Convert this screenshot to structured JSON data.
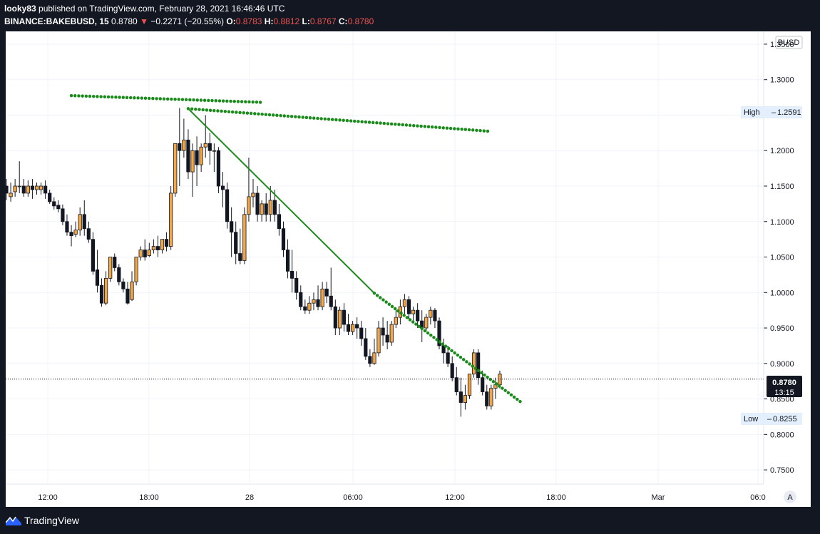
{
  "header": {
    "author": "looky83",
    "published_text": "published on TradingView.com, February 28, 2021 16:46:46 UTC",
    "symbol": "BINANCE:BAKEBUSD, 15",
    "last": "0.8780",
    "change": "−0.2271 (−20.55%)",
    "open_label": "O:",
    "open": "0.8783",
    "high_label": "H:",
    "high": "0.8812",
    "low_label": "L:",
    "low": "0.8767",
    "close_label": "C:",
    "close": "0.8780"
  },
  "footer": {
    "brand": "TradingView"
  },
  "chart_data": {
    "type": "candlestick",
    "currency": "BUSD",
    "ylim": [
      0.73,
      1.362
    ],
    "y_ticks": [
      "1.3500",
      "1.3000",
      "1.2500",
      "1.2000",
      "1.1500",
      "1.1000",
      "1.0500",
      "1.0000",
      "0.9500",
      "0.9000",
      "0.8500",
      "0.8000",
      "0.7500"
    ],
    "x_ticks": [
      "12:00",
      "18:00",
      "28",
      "06:00",
      "12:00",
      "18:00",
      "Mar",
      "06:0"
    ],
    "last_price": "0.8780",
    "countdown": "13:15",
    "high_label": "High",
    "high_value": "1.2591",
    "low_label": "Low",
    "low_value": "0.8255",
    "auto_label": "A",
    "colors": {
      "up": "#f6a640",
      "down": "#131722",
      "trend": "#1a8b1a",
      "dots": "#1a8b1a",
      "price_line": "#131722"
    },
    "candles": [
      [
        1.15,
        1.16,
        1.14,
        1.13
      ],
      [
        1.135,
        1.155,
        1.14,
        1.128
      ],
      [
        1.142,
        1.16,
        1.15,
        1.135
      ],
      [
        1.15,
        1.185,
        1.15,
        1.14
      ],
      [
        1.15,
        1.16,
        1.14,
        1.135
      ],
      [
        1.14,
        1.158,
        1.15,
        1.135
      ],
      [
        1.15,
        1.16,
        1.145,
        1.132
      ],
      [
        1.145,
        1.155,
        1.15,
        1.138
      ],
      [
        1.145,
        1.155,
        1.15,
        1.138
      ],
      [
        1.15,
        1.158,
        1.14,
        1.132
      ],
      [
        1.14,
        1.145,
        1.128,
        1.125
      ],
      [
        1.128,
        1.134,
        1.122,
        1.117
      ],
      [
        1.123,
        1.13,
        1.118,
        1.113
      ],
      [
        1.118,
        1.124,
        1.1,
        1.095
      ],
      [
        1.1,
        1.11,
        1.085,
        1.08
      ],
      [
        1.085,
        1.095,
        1.08,
        1.065
      ],
      [
        1.082,
        1.1,
        1.088,
        1.078
      ],
      [
        1.088,
        1.12,
        1.11,
        1.08
      ],
      [
        1.11,
        1.13,
        1.09,
        1.08
      ],
      [
        1.09,
        1.1,
        1.075,
        1.07
      ],
      [
        1.075,
        1.085,
        1.03,
        1.025
      ],
      [
        1.032,
        1.06,
        1.01,
        1.0
      ],
      [
        1.01,
        1.02,
        0.985,
        0.98
      ],
      [
        0.985,
        1.03,
        1.02,
        0.982
      ],
      [
        1.02,
        1.045,
        1.05,
        1.015
      ],
      [
        1.05,
        1.055,
        1.035,
        1.03
      ],
      [
        1.035,
        1.04,
        1.015,
        1.01
      ],
      [
        1.015,
        1.02,
        1.005,
        1.0
      ],
      [
        1.005,
        1.015,
        0.985,
        0.983
      ],
      [
        0.99,
        1.03,
        1.015,
        0.988
      ],
      [
        1.015,
        1.045,
        1.05,
        1.01
      ],
      [
        1.05,
        1.065,
        1.06,
        1.045
      ],
      [
        1.06,
        1.075,
        1.05,
        1.045
      ],
      [
        1.052,
        1.07,
        1.06,
        1.05
      ],
      [
        1.06,
        1.075,
        1.065,
        1.055
      ],
      [
        1.065,
        1.08,
        1.06,
        1.05
      ],
      [
        1.06,
        1.07,
        1.075,
        1.055
      ],
      [
        1.075,
        1.085,
        1.065,
        1.058
      ],
      [
        1.065,
        1.15,
        1.14,
        1.06
      ],
      [
        1.14,
        1.2,
        1.21,
        1.135
      ],
      [
        1.21,
        1.26,
        1.2,
        1.15
      ],
      [
        1.2,
        1.245,
        1.215,
        1.19
      ],
      [
        1.215,
        1.23,
        1.17,
        1.16
      ],
      [
        1.17,
        1.21,
        1.2,
        1.135
      ],
      [
        1.2,
        1.22,
        1.18,
        1.15
      ],
      [
        1.18,
        1.21,
        1.205,
        1.17
      ],
      [
        1.205,
        1.25,
        1.21,
        1.19
      ],
      [
        1.21,
        1.225,
        1.2,
        1.18
      ],
      [
        1.2,
        1.21,
        1.2,
        1.17
      ],
      [
        1.2,
        1.205,
        1.15,
        1.14
      ],
      [
        1.15,
        1.17,
        1.145,
        1.12
      ],
      [
        1.145,
        1.155,
        1.1,
        1.09
      ],
      [
        1.1,
        1.12,
        1.085,
        1.05
      ],
      [
        1.085,
        1.1,
        1.055,
        1.04
      ],
      [
        1.055,
        1.09,
        1.045,
        1.04
      ],
      [
        1.045,
        1.12,
        1.11,
        1.04
      ],
      [
        1.11,
        1.19,
        1.135,
        1.1
      ],
      [
        1.135,
        1.16,
        1.14,
        1.12
      ],
      [
        1.14,
        1.15,
        1.11,
        1.1
      ],
      [
        1.11,
        1.13,
        1.125,
        1.1
      ],
      [
        1.125,
        1.14,
        1.11,
        1.1
      ],
      [
        1.11,
        1.15,
        1.13,
        1.1
      ],
      [
        1.13,
        1.145,
        1.11,
        1.1
      ],
      [
        1.11,
        1.125,
        1.09,
        1.08
      ],
      [
        1.09,
        1.1,
        1.06,
        1.05
      ],
      [
        1.06,
        1.075,
        1.03,
        1.02
      ],
      [
        1.03,
        1.06,
        1.02,
        1.0
      ],
      [
        1.02,
        1.03,
        1.0,
        0.99
      ],
      [
        1.0,
        1.01,
        0.98,
        0.975
      ],
      [
        0.98,
        0.99,
        0.975,
        0.97
      ],
      [
        0.975,
        0.995,
        0.985,
        0.97
      ],
      [
        0.985,
        1.0,
        0.99,
        0.975
      ],
      [
        0.99,
        1.01,
        0.98,
        0.975
      ],
      [
        0.98,
        1.015,
        1.005,
        0.975
      ],
      [
        1.005,
        1.015,
        0.995,
        0.985
      ],
      [
        0.995,
        1.035,
        0.98,
        0.975
      ],
      [
        0.98,
        0.99,
        0.95,
        0.94
      ],
      [
        0.95,
        0.98,
        0.975,
        0.94
      ],
      [
        0.975,
        0.985,
        0.955,
        0.945
      ],
      [
        0.955,
        0.97,
        0.945,
        0.94
      ],
      [
        0.945,
        0.96,
        0.955,
        0.94
      ],
      [
        0.955,
        0.965,
        0.95,
        0.935
      ],
      [
        0.95,
        0.96,
        0.935,
        0.925
      ],
      [
        0.935,
        0.95,
        0.91,
        0.905
      ],
      [
        0.91,
        0.92,
        0.9,
        0.895
      ],
      [
        0.9,
        0.935,
        0.915,
        0.898
      ],
      [
        0.915,
        0.96,
        0.95,
        0.91
      ],
      [
        0.95,
        0.965,
        0.94,
        0.925
      ],
      [
        0.94,
        0.96,
        0.93,
        0.92
      ],
      [
        0.93,
        0.96,
        0.955,
        0.925
      ],
      [
        0.955,
        0.975,
        0.965,
        0.95
      ],
      [
        0.965,
        0.99,
        0.98,
        0.955
      ],
      [
        0.98,
        0.998,
        0.99,
        0.97
      ],
      [
        0.99,
        0.995,
        0.97,
        0.96
      ],
      [
        0.97,
        0.98,
        0.975,
        0.96
      ],
      [
        0.975,
        0.985,
        0.96,
        0.95
      ],
      [
        0.96,
        0.975,
        0.95,
        0.93
      ],
      [
        0.95,
        0.97,
        0.965,
        0.945
      ],
      [
        0.965,
        0.98,
        0.975,
        0.955
      ],
      [
        0.975,
        0.978,
        0.96,
        0.95
      ],
      [
        0.96,
        0.965,
        0.925,
        0.92
      ],
      [
        0.925,
        0.935,
        0.915,
        0.9
      ],
      [
        0.915,
        0.925,
        0.9,
        0.895
      ],
      [
        0.9,
        0.91,
        0.88,
        0.875
      ],
      [
        0.88,
        0.895,
        0.86,
        0.855
      ],
      [
        0.86,
        0.88,
        0.845,
        0.825
      ],
      [
        0.845,
        0.87,
        0.855,
        0.835
      ],
      [
        0.855,
        0.88,
        0.885,
        0.85
      ],
      [
        0.885,
        0.92,
        0.915,
        0.88
      ],
      [
        0.915,
        0.92,
        0.88,
        0.87
      ],
      [
        0.88,
        0.89,
        0.86,
        0.855
      ],
      [
        0.86,
        0.87,
        0.84,
        0.835
      ],
      [
        0.84,
        0.87,
        0.865,
        0.835
      ],
      [
        0.865,
        0.88,
        0.87,
        0.85
      ],
      [
        0.87,
        0.89,
        0.885,
        0.865
      ]
    ],
    "trendline": {
      "start": {
        "bar": 42,
        "price": 1.2591
      },
      "end": {
        "bar": 85,
        "price": 0.999
      }
    },
    "dotted_lines": [
      {
        "start": {
          "bar": 15,
          "price": 1.2775
        },
        "end": {
          "bar": 59,
          "price": 1.268
        }
      },
      {
        "start": {
          "bar": 42,
          "price": 1.2591
        },
        "end": {
          "bar": 112,
          "price": 1.227
        }
      },
      {
        "start": {
          "bar": 85,
          "price": 0.999
        },
        "end": {
          "bar": 119,
          "price": 0.845
        }
      }
    ]
  }
}
